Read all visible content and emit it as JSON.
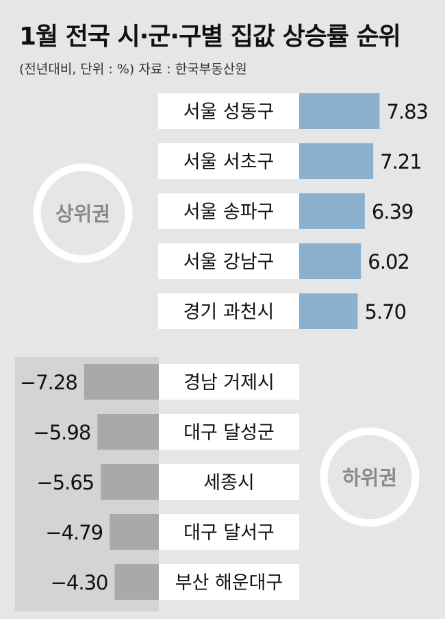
{
  "header": {
    "title": "1월 전국 시·군·구별 집값 상승률 순위",
    "subtitle": "(전년대비, 단위 : %)  자료 : 한국부동산원"
  },
  "chart_data": [
    {
      "type": "bar",
      "title": "상위권",
      "categories": [
        "서울 성동구",
        "서울 서초구",
        "서울 송파구",
        "서울 강남구",
        "경기 과천시"
      ],
      "values": [
        7.83,
        7.21,
        6.39,
        6.02,
        5.7
      ],
      "value_labels": [
        "7.83",
        "7.21",
        "6.39",
        "6.02",
        "5.70"
      ],
      "bar_color": "#8bb1d0"
    },
    {
      "type": "bar",
      "title": "하위권",
      "categories": [
        "경남 거제시",
        "대구 달성군",
        "세종시",
        "대구 달서구",
        "부산 해운대구"
      ],
      "values": [
        -7.28,
        -5.98,
        -5.65,
        -4.79,
        -4.3
      ],
      "value_labels": [
        "−7.28",
        "−5.98",
        "−5.65",
        "−4.79",
        "−4.30"
      ],
      "bar_color": "#a9a9ab"
    }
  ],
  "colors": {
    "background": "#e6e6e6",
    "label_box": "#ffffff",
    "lower_panel": "#d4d4d4",
    "badge_ring": "#ffffff",
    "badge_text": "#8a8a8a"
  }
}
